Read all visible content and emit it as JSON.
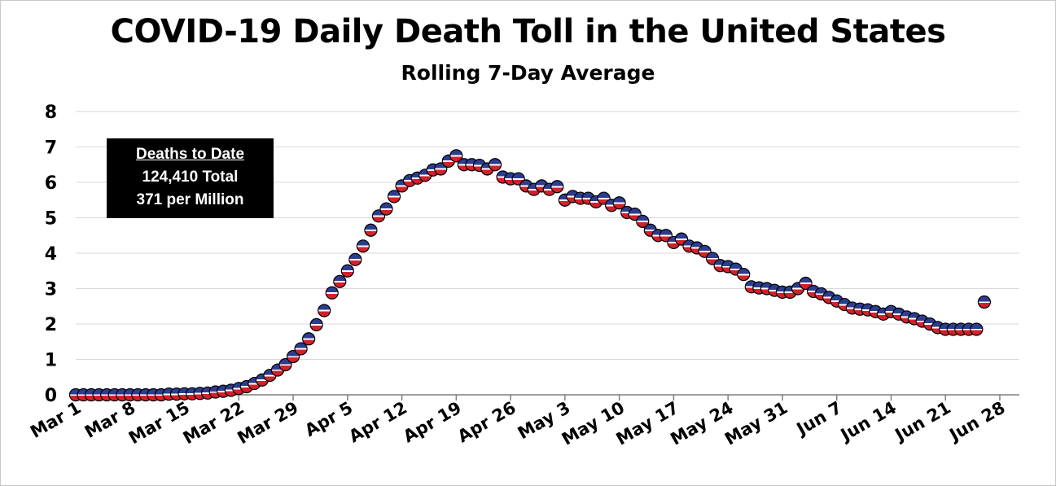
{
  "chart_data": {
    "type": "scatter",
    "title": "COVID-19 Daily Death Toll in the United States",
    "subtitle": "Rolling 7-Day Average",
    "xlabel": "",
    "ylabel": "",
    "ylim": [
      0,
      8
    ],
    "yticks": [
      "0",
      "1",
      "2",
      "3",
      "4",
      "5",
      "6",
      "7",
      "8"
    ],
    "xlim": [
      0,
      119
    ],
    "xticks": [
      {
        "label": "Mar 1",
        "day": 0
      },
      {
        "label": "Mar 8",
        "day": 7
      },
      {
        "label": "Mar 15",
        "day": 14
      },
      {
        "label": "Mar 22",
        "day": 21
      },
      {
        "label": "Mar 29",
        "day": 28
      },
      {
        "label": "Apr 5",
        "day": 35
      },
      {
        "label": "Apr 12",
        "day": 42
      },
      {
        "label": "Apr 19",
        "day": 49
      },
      {
        "label": "Apr 26",
        "day": 56
      },
      {
        "label": "May 3",
        "day": 63
      },
      {
        "label": "May 10",
        "day": 70
      },
      {
        "label": "May 17",
        "day": 77
      },
      {
        "label": "May 24",
        "day": 84
      },
      {
        "label": "May 31",
        "day": 91
      },
      {
        "label": "Jun 7",
        "day": 98
      },
      {
        "label": "Jun 14",
        "day": 105
      },
      {
        "label": "Jun 21",
        "day": 112
      },
      {
        "label": "Jun 28",
        "day": 119
      }
    ],
    "grid": true,
    "marker_colors": {
      "top": "#2b3d8f",
      "stripe": "#ffffff",
      "bottom": "#d4202a",
      "outline": "#000000"
    },
    "series": [
      {
        "name": "Rolling 7-Day Average",
        "x_start_day": 0,
        "values": [
          0,
          0,
          0,
          0,
          0,
          0,
          0,
          0,
          0,
          0,
          0,
          0,
          0.02,
          0.02,
          0.03,
          0.03,
          0.04,
          0.05,
          0.08,
          0.1,
          0.13,
          0.18,
          0.23,
          0.32,
          0.42,
          0.55,
          0.7,
          0.85,
          1.08,
          1.3,
          1.58,
          1.98,
          2.38,
          2.88,
          3.2,
          3.5,
          3.82,
          4.2,
          4.65,
          5.05,
          5.25,
          5.6,
          5.9,
          6.05,
          6.12,
          6.2,
          6.35,
          6.38,
          6.6,
          6.75,
          6.5,
          6.5,
          6.48,
          6.38,
          6.5,
          6.15,
          6.1,
          6.1,
          5.9,
          5.8,
          5.9,
          5.8,
          5.88,
          5.5,
          5.6,
          5.55,
          5.55,
          5.45,
          5.55,
          5.35,
          5.42,
          5.15,
          5.1,
          4.9,
          4.65,
          4.5,
          4.5,
          4.3,
          4.4,
          4.2,
          4.15,
          4.05,
          3.85,
          3.65,
          3.62,
          3.55,
          3.4,
          3.05,
          3.02,
          3.0,
          2.95,
          2.9,
          2.9,
          3.0,
          3.15,
          2.92,
          2.85,
          2.75,
          2.65,
          2.55,
          2.45,
          2.42,
          2.4,
          2.35,
          2.28,
          2.35,
          2.28,
          2.2,
          2.15,
          2.08,
          2.0,
          1.9,
          1.85,
          1.85,
          1.85,
          1.85,
          1.85,
          2.62
        ]
      }
    ]
  },
  "infobox": {
    "heading": "Deaths to Date",
    "total": "124,410 Total",
    "per_million": "371 per Million"
  }
}
